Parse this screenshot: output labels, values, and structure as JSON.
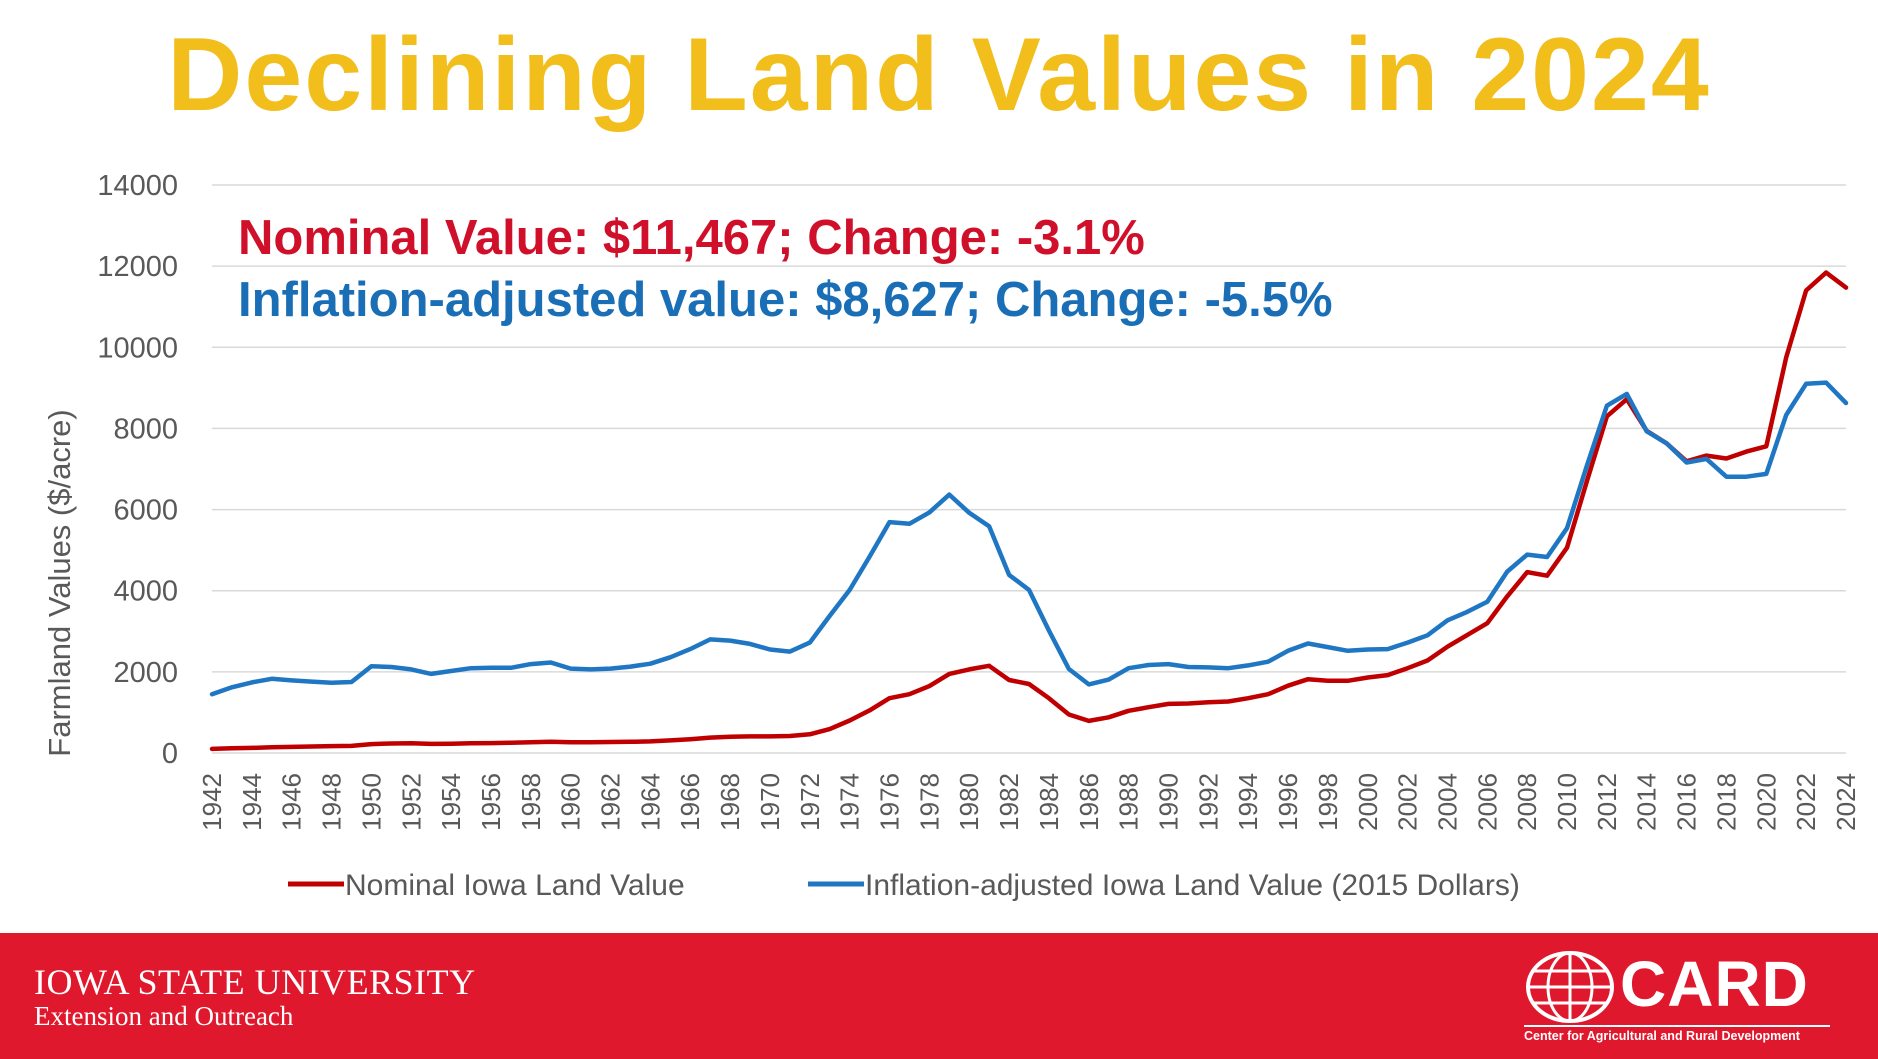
{
  "title": "Declining Land Values in 2024",
  "annotations": {
    "nominal": "Nominal Value: $11,467; Change: -3.1%",
    "inflation": "Inflation-adjusted value: $8,627; Change: -5.5%"
  },
  "colors": {
    "title": "#F1BE1C",
    "nominal": "#C00000",
    "nominal_text": "#D0102B",
    "inflation": "#1F77C4",
    "inflation_text": "#1A6EB6",
    "footer": "#E0182D",
    "grid": "#D9D9D9",
    "axis_text": "#595959"
  },
  "footer": {
    "isu_name": "IOWA STATE UNIVERSITY",
    "isu_sub": "Extension and Outreach",
    "card_logo": "CARD",
    "card_sub": "Center for Agricultural and Rural Development"
  },
  "chart_data": {
    "type": "line",
    "ylabel": "Farmland Values ($/acre)",
    "xlabel": "",
    "ylim": [
      0,
      14000
    ],
    "yticks": [
      "0",
      "2000",
      "4000",
      "6000",
      "8000",
      "10000",
      "12000",
      "14000"
    ],
    "xticks": [
      "1942",
      "1944",
      "1946",
      "1948",
      "1950",
      "1952",
      "1954",
      "1956",
      "1958",
      "1960",
      "1962",
      "1964",
      "1966",
      "1968",
      "1970",
      "1972",
      "1974",
      "1976",
      "1978",
      "1980",
      "1982",
      "1984",
      "1986",
      "1988",
      "1990",
      "1992",
      "1994",
      "1996",
      "1998",
      "2000",
      "2002",
      "2004",
      "2006",
      "2008",
      "2010",
      "2012",
      "2014",
      "2016",
      "2018",
      "2020",
      "2022",
      "2024"
    ],
    "grid": true,
    "legend_position": "bottom",
    "x": [
      1942,
      1943,
      1944,
      1945,
      1946,
      1947,
      1948,
      1949,
      1950,
      1951,
      1952,
      1953,
      1954,
      1955,
      1956,
      1957,
      1958,
      1959,
      1960,
      1961,
      1962,
      1963,
      1964,
      1965,
      1966,
      1967,
      1968,
      1969,
      1970,
      1971,
      1972,
      1973,
      1974,
      1975,
      1976,
      1977,
      1978,
      1979,
      1980,
      1981,
      1982,
      1983,
      1984,
      1985,
      1986,
      1987,
      1988,
      1989,
      1990,
      1991,
      1992,
      1993,
      1994,
      1995,
      1996,
      1997,
      1998,
      1999,
      2000,
      2001,
      2002,
      2003,
      2004,
      2005,
      2006,
      2007,
      2008,
      2009,
      2010,
      2011,
      2012,
      2013,
      2014,
      2015,
      2016,
      2017,
      2018,
      2019,
      2020,
      2021,
      2022,
      2023,
      2024
    ],
    "series": [
      {
        "name": "Nominal Iowa Land Value",
        "color": "#C00000",
        "values": [
          100,
          115,
          125,
          140,
          150,
          160,
          170,
          175,
          220,
          235,
          240,
          225,
          230,
          240,
          245,
          255,
          265,
          275,
          265,
          265,
          270,
          275,
          285,
          310,
          340,
          380,
          400,
          410,
          410,
          420,
          460,
          590,
          800,
          1050,
          1350,
          1450,
          1650,
          1950,
          2060,
          2150,
          1800,
          1700,
          1350,
          950,
          790,
          880,
          1040,
          1130,
          1210,
          1220,
          1250,
          1270,
          1350,
          1450,
          1660,
          1820,
          1780,
          1780,
          1860,
          1920,
          2090,
          2280,
          2620,
          2910,
          3200,
          3860,
          4460,
          4370,
          5060,
          6710,
          8300,
          8720,
          7940,
          7630,
          7190,
          7330,
          7260,
          7430,
          7560,
          9750,
          11400,
          11840,
          11470
        ]
      },
      {
        "name": "Inflation-adjusted Iowa Land Value (2015 Dollars)",
        "color": "#1F77C4",
        "values": [
          1450,
          1620,
          1740,
          1830,
          1790,
          1760,
          1730,
          1750,
          2140,
          2120,
          2060,
          1950,
          2020,
          2090,
          2100,
          2100,
          2190,
          2230,
          2080,
          2060,
          2080,
          2130,
          2200,
          2360,
          2560,
          2800,
          2770,
          2690,
          2550,
          2500,
          2720,
          3380,
          4020,
          4840,
          5690,
          5650,
          5930,
          6370,
          5920,
          5590,
          4390,
          4020,
          3020,
          2070,
          1690,
          1810,
          2090,
          2170,
          2190,
          2120,
          2110,
          2090,
          2160,
          2250,
          2520,
          2700,
          2610,
          2520,
          2550,
          2560,
          2720,
          2900,
          3270,
          3480,
          3730,
          4470,
          4890,
          4830,
          5540,
          7090,
          8560,
          8850,
          7930,
          7630,
          7160,
          7250,
          6810,
          6810,
          6880,
          8330,
          9100,
          9130,
          8627
        ]
      }
    ]
  }
}
